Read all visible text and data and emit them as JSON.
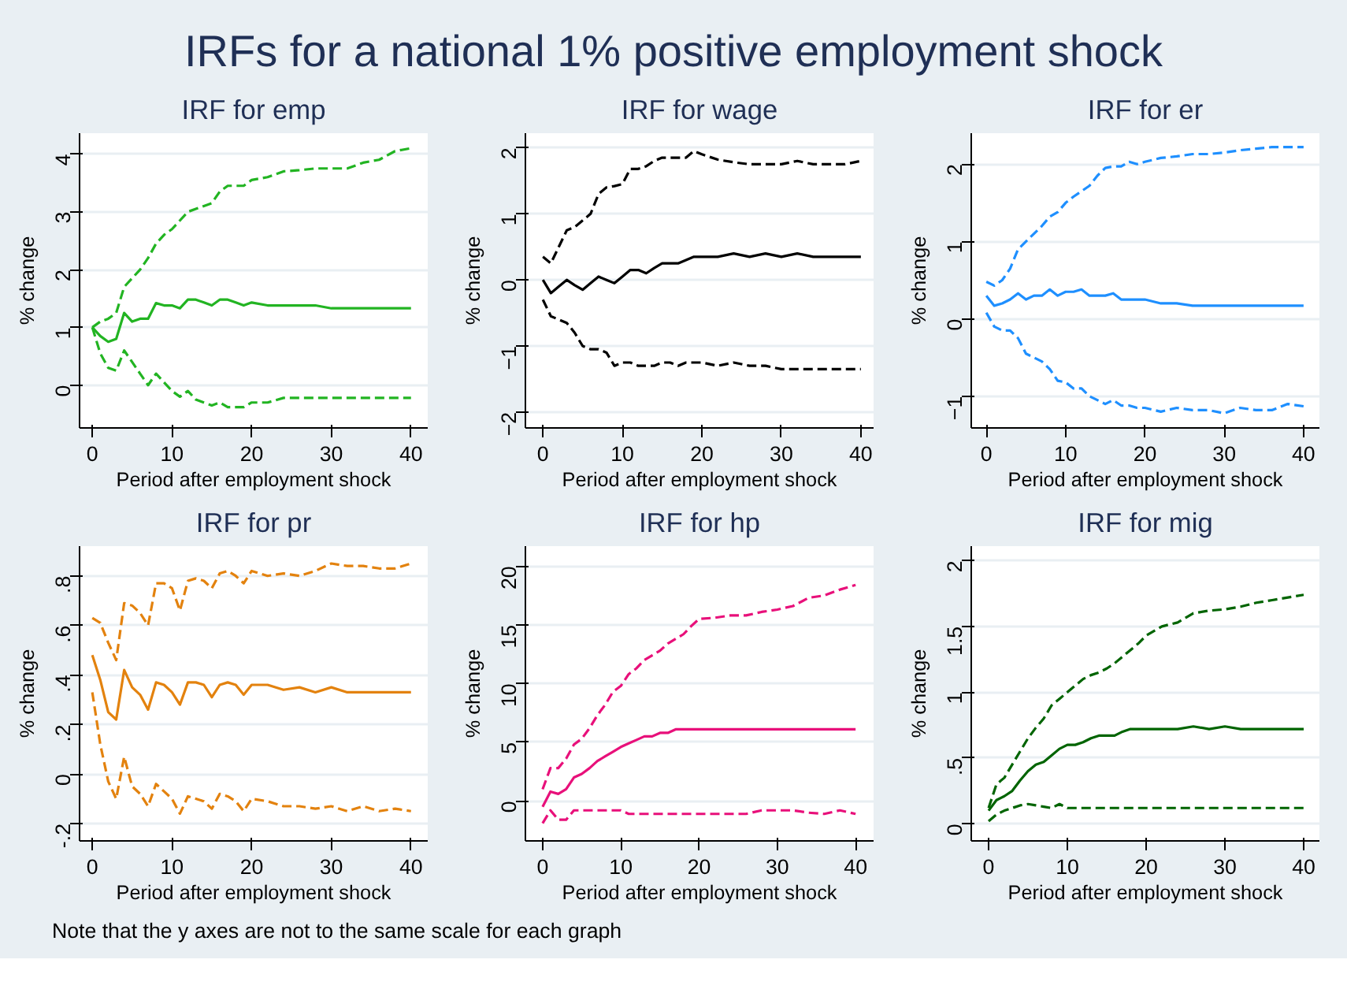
{
  "chart_data": [
    {
      "type": "other",
      "title": "IRFs for a national 1% positive employment shock",
      "annotations": [
        "Note that the y axes are not to the same scale for each graph"
      ]
    },
    {
      "type": "line",
      "title": "IRF for emp",
      "xlabel": "Period after employment shock",
      "ylabel": "% change",
      "grid": "y",
      "xlim": [
        -1.6,
        42.1
      ],
      "xticks": [
        0,
        10,
        20,
        30,
        40
      ],
      "ylim": [
        -0.74,
        4.36
      ],
      "yticks": [
        0,
        1,
        2,
        3,
        4
      ],
      "x": [
        0,
        1,
        2,
        3,
        4,
        5,
        6,
        7,
        8,
        9,
        10,
        11,
        12,
        13,
        14,
        15,
        16,
        17,
        18,
        19,
        20,
        22,
        24,
        26,
        28,
        30,
        32,
        34,
        36,
        38,
        40
      ],
      "series": [
        {
          "color": "#22b422",
          "line_style": "solid",
          "values": [
            1.0,
            0.85,
            0.75,
            0.8,
            1.25,
            1.1,
            1.15,
            1.15,
            1.42,
            1.38,
            1.38,
            1.33,
            1.48,
            1.48,
            1.43,
            1.38,
            1.48,
            1.48,
            1.43,
            1.38,
            1.43,
            1.38,
            1.38,
            1.38,
            1.38,
            1.33,
            1.33,
            1.33,
            1.33,
            1.33,
            1.33
          ]
        },
        {
          "color": "#22b422",
          "line_style": "dashed",
          "values": [
            1.0,
            1.1,
            1.15,
            1.25,
            1.7,
            1.85,
            2.0,
            2.2,
            2.45,
            2.6,
            2.7,
            2.85,
            3.0,
            3.05,
            3.1,
            3.15,
            3.35,
            3.45,
            3.45,
            3.45,
            3.55,
            3.6,
            3.7,
            3.72,
            3.75,
            3.75,
            3.75,
            3.85,
            3.9,
            4.05,
            4.1
          ]
        },
        {
          "color": "#22b422",
          "line_style": "dashed",
          "values": [
            1.0,
            0.55,
            0.3,
            0.25,
            0.6,
            0.4,
            0.2,
            0.0,
            0.2,
            0.05,
            -0.1,
            -0.2,
            -0.1,
            -0.25,
            -0.3,
            -0.35,
            -0.3,
            -0.38,
            -0.38,
            -0.38,
            -0.3,
            -0.3,
            -0.22,
            -0.22,
            -0.22,
            -0.22,
            -0.22,
            -0.22,
            -0.22,
            -0.22,
            -0.22
          ]
        }
      ]
    },
    {
      "type": "line",
      "title": "IRF for wage",
      "xlabel": "Period after employment shock",
      "ylabel": "% change",
      "grid": "y",
      "xlim": [
        -2.2,
        41.6
      ],
      "xticks": [
        0,
        10,
        20,
        30,
        40
      ],
      "ylim": [
        -2.24,
        2.22
      ],
      "yticks": [
        -2,
        -1,
        0,
        1,
        2
      ],
      "x": [
        0,
        1,
        2,
        3,
        4,
        5,
        6,
        7,
        8,
        9,
        10,
        11,
        12,
        13,
        14,
        15,
        16,
        17,
        18,
        19,
        20,
        22,
        24,
        26,
        28,
        30,
        32,
        34,
        36,
        38,
        40
      ],
      "series": [
        {
          "color": "#000000",
          "line_style": "solid",
          "values": [
            0,
            -0.2,
            -0.1,
            0,
            -0.08,
            -0.15,
            -0.05,
            0.05,
            0,
            -0.05,
            0.05,
            0.15,
            0.15,
            0.1,
            0.18,
            0.25,
            0.25,
            0.25,
            0.3,
            0.35,
            0.35,
            0.35,
            0.4,
            0.35,
            0.4,
            0.35,
            0.4,
            0.35,
            0.35,
            0.35,
            0.35
          ]
        },
        {
          "color": "#000000",
          "line_style": "dashed",
          "values": [
            0.35,
            0.25,
            0.5,
            0.75,
            0.8,
            0.9,
            1.0,
            1.3,
            1.4,
            1.42,
            1.45,
            1.68,
            1.68,
            1.72,
            1.8,
            1.85,
            1.85,
            1.85,
            1.85,
            1.95,
            1.9,
            1.82,
            1.78,
            1.75,
            1.75,
            1.75,
            1.8,
            1.75,
            1.75,
            1.75,
            1.8
          ]
        },
        {
          "color": "#000000",
          "line_style": "dashed",
          "values": [
            -0.3,
            -0.55,
            -0.6,
            -0.65,
            -0.8,
            -1.0,
            -1.05,
            -1.05,
            -1.1,
            -1.3,
            -1.25,
            -1.25,
            -1.3,
            -1.3,
            -1.3,
            -1.25,
            -1.25,
            -1.3,
            -1.25,
            -1.25,
            -1.25,
            -1.3,
            -1.25,
            -1.3,
            -1.3,
            -1.35,
            -1.35,
            -1.35,
            -1.35,
            -1.35,
            -1.35
          ]
        }
      ]
    },
    {
      "type": "line",
      "title": "IRF for er",
      "xlabel": "Period after employment shock",
      "ylabel": "% change",
      "grid": "y",
      "xlim": [
        -1.9,
        42
      ],
      "xticks": [
        0,
        10,
        20,
        30,
        40
      ],
      "ylim": [
        -1.41,
        2.4
      ],
      "yticks": [
        -1,
        0,
        1,
        2
      ],
      "x": [
        0,
        1,
        2,
        3,
        4,
        5,
        6,
        7,
        8,
        9,
        10,
        11,
        12,
        13,
        14,
        15,
        16,
        17,
        18,
        19,
        20,
        22,
        24,
        26,
        28,
        30,
        32,
        34,
        36,
        38,
        40
      ],
      "series": [
        {
          "color": "#1e8fff",
          "line_style": "solid",
          "values": [
            0.3,
            0.17,
            0.2,
            0.25,
            0.33,
            0.25,
            0.3,
            0.3,
            0.38,
            0.3,
            0.35,
            0.35,
            0.38,
            0.3,
            0.3,
            0.3,
            0.33,
            0.25,
            0.25,
            0.25,
            0.25,
            0.2,
            0.2,
            0.17,
            0.17,
            0.17,
            0.17,
            0.17,
            0.17,
            0.17,
            0.17
          ]
        },
        {
          "color": "#1e8fff",
          "line_style": "dashed",
          "values": [
            0.48,
            0.43,
            0.5,
            0.65,
            0.9,
            1.0,
            1.1,
            1.2,
            1.32,
            1.38,
            1.5,
            1.58,
            1.65,
            1.72,
            1.85,
            1.95,
            1.97,
            1.97,
            2.03,
            2.0,
            2.03,
            2.08,
            2.1,
            2.13,
            2.13,
            2.15,
            2.18,
            2.2,
            2.22,
            2.22,
            2.22
          ]
        },
        {
          "color": "#1e8fff",
          "line_style": "dashed",
          "values": [
            0.08,
            -0.1,
            -0.15,
            -0.15,
            -0.25,
            -0.45,
            -0.5,
            -0.55,
            -0.65,
            -0.8,
            -0.82,
            -0.9,
            -0.9,
            -1.0,
            -1.05,
            -1.1,
            -1.05,
            -1.12,
            -1.12,
            -1.15,
            -1.15,
            -1.2,
            -1.15,
            -1.18,
            -1.18,
            -1.22,
            -1.15,
            -1.18,
            -1.18,
            -1.1,
            -1.13
          ]
        }
      ]
    },
    {
      "type": "line",
      "title": "IRF for pr",
      "xlabel": "Period after employment shock",
      "ylabel": "% change",
      "grid": "y",
      "xlim": [
        -1.6,
        42.1
      ],
      "xticks": [
        0,
        10,
        20,
        30,
        40
      ],
      "ylim": [
        -0.27,
        0.92
      ],
      "yticks": [
        {
          "value": -0.2,
          "label": "-.2"
        },
        0,
        {
          "value": 0.2,
          "label": ".2"
        },
        {
          "value": 0.4,
          "label": ".4"
        },
        {
          "value": 0.6,
          "label": ".6"
        },
        {
          "value": 0.8,
          "label": ".8"
        }
      ],
      "x": [
        0,
        1,
        2,
        3,
        4,
        5,
        6,
        7,
        8,
        9,
        10,
        11,
        12,
        13,
        14,
        15,
        16,
        17,
        18,
        19,
        20,
        22,
        24,
        26,
        28,
        30,
        32,
        34,
        36,
        38,
        40
      ],
      "series": [
        {
          "color": "#e3820e",
          "line_style": "solid",
          "values": [
            0.48,
            0.38,
            0.25,
            0.22,
            0.42,
            0.35,
            0.32,
            0.26,
            0.37,
            0.36,
            0.33,
            0.28,
            0.37,
            0.37,
            0.36,
            0.31,
            0.36,
            0.37,
            0.36,
            0.32,
            0.36,
            0.36,
            0.34,
            0.35,
            0.33,
            0.35,
            0.33,
            0.33,
            0.33,
            0.33,
            0.33
          ]
        },
        {
          "color": "#e3820e",
          "line_style": "dashed",
          "values": [
            0.63,
            0.61,
            0.53,
            0.46,
            0.69,
            0.68,
            0.65,
            0.6,
            0.77,
            0.77,
            0.75,
            0.66,
            0.78,
            0.79,
            0.78,
            0.75,
            0.81,
            0.82,
            0.8,
            0.77,
            0.82,
            0.8,
            0.81,
            0.8,
            0.82,
            0.85,
            0.84,
            0.84,
            0.83,
            0.83,
            0.85
          ]
        },
        {
          "color": "#e3820e",
          "line_style": "dashed",
          "values": [
            0.33,
            0.12,
            -0.03,
            -0.1,
            0.07,
            -0.05,
            -0.08,
            -0.13,
            -0.04,
            -0.07,
            -0.1,
            -0.16,
            -0.09,
            -0.1,
            -0.11,
            -0.14,
            -0.08,
            -0.09,
            -0.11,
            -0.15,
            -0.1,
            -0.11,
            -0.13,
            -0.13,
            -0.14,
            -0.13,
            -0.15,
            -0.13,
            -0.15,
            -0.14,
            -0.15
          ]
        }
      ]
    },
    {
      "type": "line",
      "title": "IRF for hp",
      "xlabel": "Period after employment shock",
      "ylabel": "% change",
      "grid": "y",
      "xlim": [
        -2.2,
        42.3
      ],
      "xticks": [
        0,
        10,
        20,
        30,
        40
      ],
      "ylim": [
        -3.4,
        21.7
      ],
      "yticks": [
        0,
        5,
        10,
        15,
        20
      ],
      "x": [
        0,
        1,
        2,
        3,
        4,
        5,
        6,
        7,
        8,
        9,
        10,
        11,
        12,
        13,
        14,
        15,
        16,
        17,
        18,
        19,
        20,
        22,
        24,
        26,
        28,
        30,
        32,
        34,
        36,
        38,
        40
      ],
      "series": [
        {
          "color": "#e8107a",
          "line_style": "solid",
          "values": [
            -0.5,
            0.8,
            0.6,
            1.0,
            2.0,
            2.3,
            2.8,
            3.4,
            3.8,
            4.2,
            4.6,
            4.9,
            5.2,
            5.5,
            5.5,
            5.8,
            5.8,
            6.1,
            6.1,
            6.1,
            6.1,
            6.1,
            6.1,
            6.1,
            6.1,
            6.1,
            6.1,
            6.1,
            6.1,
            6.1,
            6.1
          ]
        },
        {
          "color": "#e8107a",
          "line_style": "dashed",
          "values": [
            1,
            2.8,
            2.8,
            3.6,
            4.8,
            5.3,
            6.2,
            7.3,
            8.2,
            9.3,
            9.8,
            10.8,
            11.3,
            12.0,
            12.4,
            12.8,
            13.4,
            13.8,
            14.2,
            14.9,
            15.5,
            15.6,
            15.8,
            15.8,
            16.1,
            16.3,
            16.6,
            17.3,
            17.5,
            18.0,
            18.4
          ]
        },
        {
          "color": "#e8107a",
          "line_style": "dashed",
          "values": [
            -1.9,
            -0.8,
            -1.6,
            -1.6,
            -0.8,
            -0.8,
            -0.8,
            -0.8,
            -0.8,
            -0.8,
            -0.8,
            -1.1,
            -1.1,
            -1.1,
            -1.1,
            -1.1,
            -1.1,
            -1.1,
            -1.1,
            -1.1,
            -1.1,
            -1.1,
            -1.1,
            -1.1,
            -0.8,
            -0.8,
            -0.8,
            -1.0,
            -1.1,
            -0.8,
            -1.1
          ]
        }
      ]
    },
    {
      "type": "line",
      "title": "IRF for mig",
      "xlabel": "Period after employment shock",
      "ylabel": "% change",
      "grid": "y",
      "xlim": [
        -2.2,
        42
      ],
      "xticks": [
        0,
        10,
        20,
        30,
        40
      ],
      "ylim": [
        -0.13,
        2.11
      ],
      "yticks": [
        0,
        {
          "value": 0.5,
          "label": ".5"
        },
        1,
        1.5,
        2
      ],
      "x": [
        0,
        1,
        2,
        3,
        4,
        5,
        6,
        7,
        8,
        9,
        10,
        11,
        12,
        13,
        14,
        15,
        16,
        17,
        18,
        19,
        20,
        22,
        24,
        26,
        28,
        30,
        32,
        34,
        36,
        38,
        40
      ],
      "series": [
        {
          "color": "#006400",
          "line_style": "solid",
          "values": [
            0.1,
            0.18,
            0.21,
            0.25,
            0.33,
            0.4,
            0.45,
            0.47,
            0.52,
            0.57,
            0.6,
            0.6,
            0.62,
            0.65,
            0.67,
            0.67,
            0.67,
            0.7,
            0.72,
            0.72,
            0.72,
            0.72,
            0.72,
            0.74,
            0.72,
            0.74,
            0.72,
            0.72,
            0.72,
            0.72,
            0.72
          ]
        },
        {
          "color": "#006400",
          "line_style": "dashed",
          "values": [
            0.12,
            0.3,
            0.35,
            0.45,
            0.55,
            0.65,
            0.73,
            0.8,
            0.9,
            0.95,
            1.0,
            1.05,
            1.1,
            1.13,
            1.15,
            1.18,
            1.22,
            1.27,
            1.32,
            1.37,
            1.43,
            1.5,
            1.53,
            1.6,
            1.62,
            1.63,
            1.65,
            1.68,
            1.7,
            1.72,
            1.74
          ]
        },
        {
          "color": "#006400",
          "line_style": "dashed",
          "values": [
            0.02,
            0.07,
            0.1,
            0.12,
            0.14,
            0.15,
            0.14,
            0.13,
            0.12,
            0.15,
            0.12,
            0.12,
            0.12,
            0.12,
            0.12,
            0.12,
            0.12,
            0.12,
            0.12,
            0.12,
            0.12,
            0.12,
            0.12,
            0.12,
            0.12,
            0.12,
            0.12,
            0.12,
            0.12,
            0.12,
            0.12
          ]
        }
      ]
    }
  ]
}
